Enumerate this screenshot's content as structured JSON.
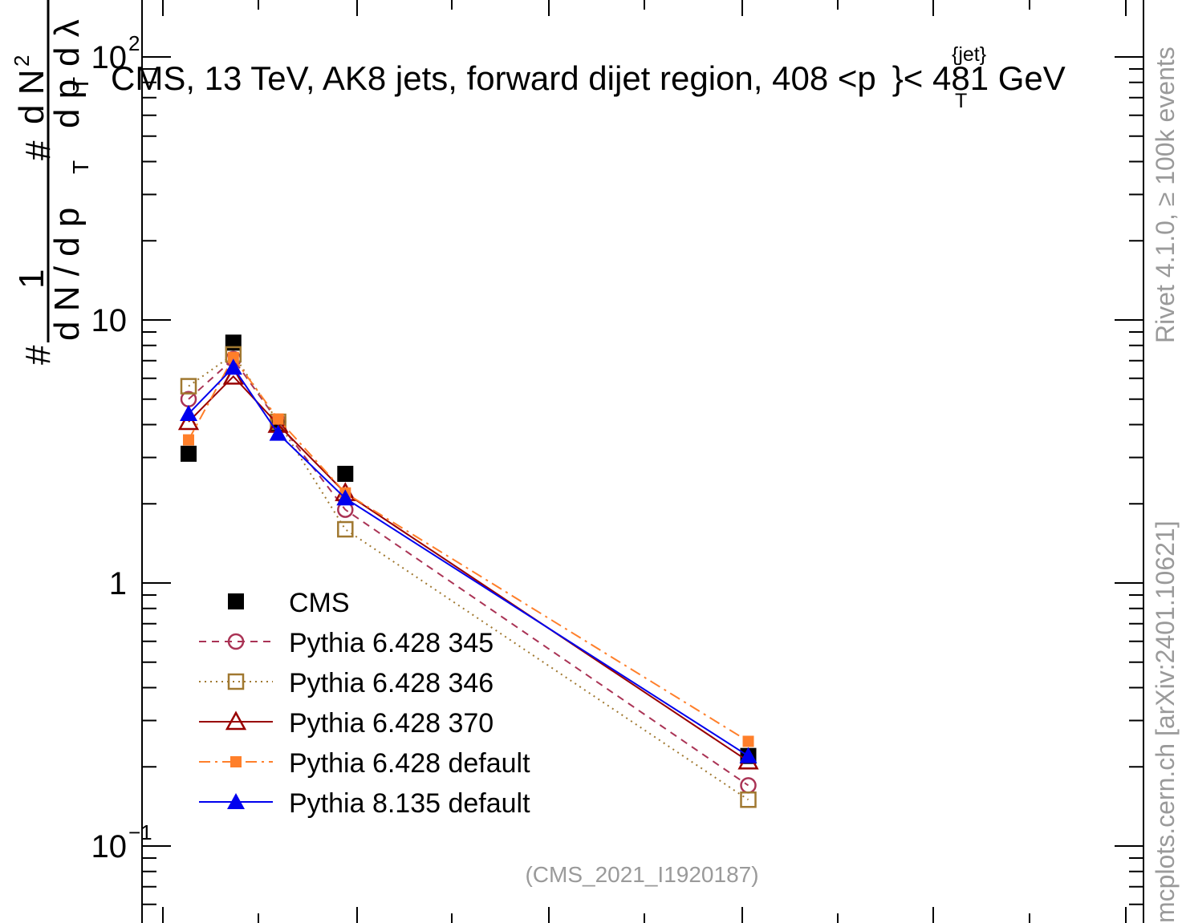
{
  "chart_data": {
    "type": "line",
    "title": "CMS, 13 TeV, AK8 jets, forward dijet region, 408 <",
    "title_var": "p",
    "title_var_sub": "T",
    "title_var_sup": "{jet}",
    "title_tail": "}< 481 GeV",
    "ylabel": {
      "prefix": "#",
      "num": "1",
      "den": "d N / d p",
      "den_sub": "T",
      "rnum": "d N",
      "rnum_sup": "2",
      "rden": "d p",
      "rden_sub": "T",
      "rden_tail": "d λ"
    },
    "y_scale": "log",
    "ylim": [
      0.06,
      180
    ],
    "y_tick_labels": [
      {
        "value": 0.1,
        "base": "10",
        "exp": "−1"
      },
      {
        "value": 1,
        "base": "1",
        "exp": ""
      },
      {
        "value": 10,
        "base": "10",
        "exp": ""
      },
      {
        "value": 100,
        "base": "10",
        "exp": "2"
      }
    ],
    "x_labels_visible": false,
    "legend_position": "bottom-left",
    "series": [
      {
        "name": "CMS",
        "color": "#000000",
        "marker": "filled-square",
        "line": "none",
        "points": [
          [
            0.25,
            3.1
          ],
          [
            0.35,
            8.2
          ],
          [
            0.45,
            4.0
          ],
          [
            0.6,
            2.6
          ],
          [
            1.5,
            0.22
          ]
        ]
      },
      {
        "name": "Pythia 6.428 345",
        "color": "#aa3355",
        "marker": "open-circle",
        "line": "dashed",
        "points": [
          [
            0.25,
            5.0
          ],
          [
            0.35,
            7.1
          ],
          [
            0.45,
            4.1
          ],
          [
            0.6,
            1.9
          ],
          [
            1.5,
            0.17
          ]
        ]
      },
      {
        "name": "Pythia 6.428 346",
        "color": "#a07830",
        "marker": "open-square",
        "line": "dotted",
        "points": [
          [
            0.25,
            5.6
          ],
          [
            0.35,
            7.4
          ],
          [
            0.45,
            4.1
          ],
          [
            0.6,
            1.6
          ],
          [
            1.5,
            0.15
          ]
        ]
      },
      {
        "name": "Pythia 6.428 370",
        "color": "#990000",
        "marker": "open-triangle",
        "line": "solid",
        "points": [
          [
            0.25,
            4.1
          ],
          [
            0.35,
            6.1
          ],
          [
            0.45,
            4.0
          ],
          [
            0.6,
            2.2
          ],
          [
            1.5,
            0.21
          ]
        ]
      },
      {
        "name": "Pythia 6.428 default",
        "color": "#ff7f2a",
        "marker": "filled-small-square",
        "line": "dashdot",
        "points": [
          [
            0.25,
            3.5
          ],
          [
            0.35,
            7.2
          ],
          [
            0.45,
            4.2
          ],
          [
            0.6,
            2.2
          ],
          [
            1.5,
            0.25
          ]
        ]
      },
      {
        "name": "Pythia 8.135 default",
        "color": "#0000ee",
        "marker": "filled-triangle",
        "line": "solid",
        "points": [
          [
            0.25,
            4.4
          ],
          [
            0.35,
            6.6
          ],
          [
            0.45,
            3.7
          ],
          [
            0.6,
            2.1
          ],
          [
            1.5,
            0.22
          ]
        ]
      }
    ]
  },
  "analysis_label": "(CMS_2021_I1920187)",
  "side_label_top": "Rivet 4.1.0, ≥ 100k events",
  "side_label_bottom": "mcplots.cern.ch [arXiv:2401.10621]"
}
